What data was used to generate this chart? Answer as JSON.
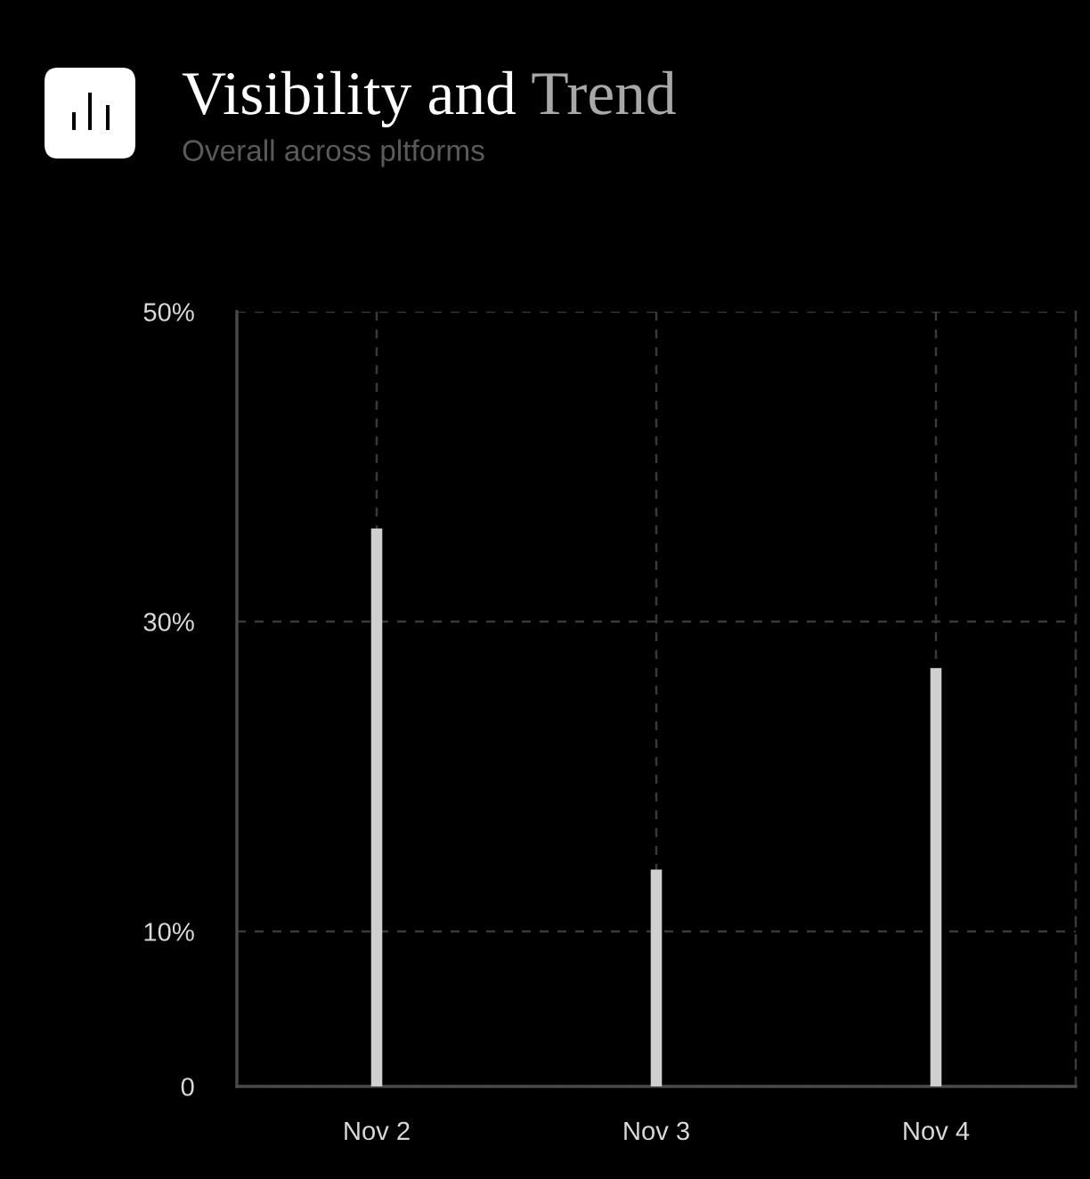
{
  "chart_data": {
    "type": "bar",
    "title": "Visibility and Trend",
    "subtitle": "Overall across pltforms",
    "categories": [
      "Nov 2",
      "Nov 3",
      "Nov 4"
    ],
    "values": [
      36,
      14,
      27
    ],
    "color": "#d0d0d0",
    "ylim": [
      0,
      50
    ],
    "yticks": [
      0,
      {
        "value": 10,
        "label": "10%"
      },
      {
        "value": 30,
        "label": "30%"
      },
      {
        "value": 50,
        "label": "50%"
      }
    ],
    "grid": true
  }
}
